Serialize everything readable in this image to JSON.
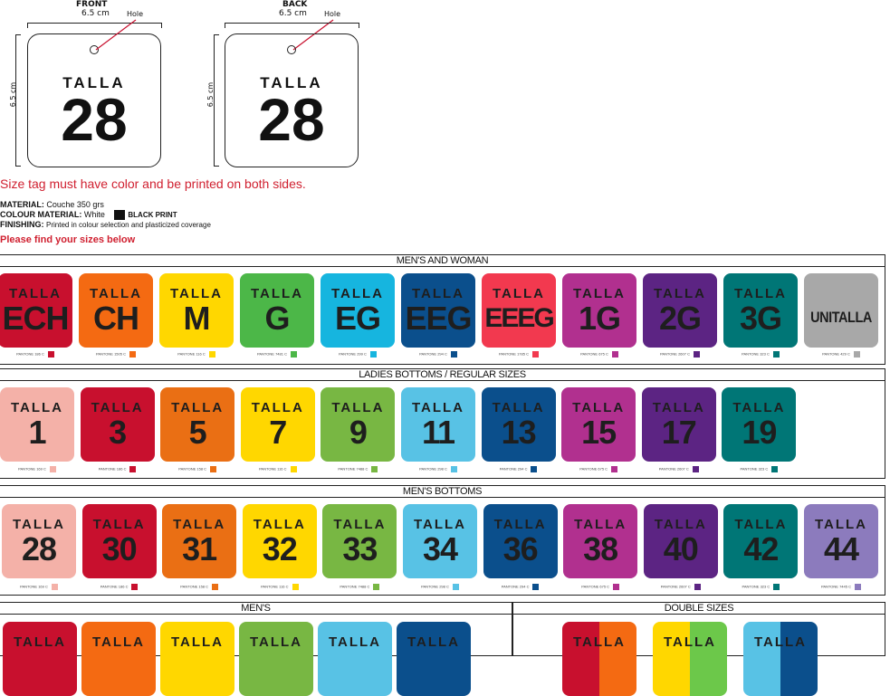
{
  "drawing": {
    "front": {
      "title": "FRONT",
      "width": "6.5 cm",
      "height": "6.5 cm",
      "hole": "Hole",
      "talla": "TALLA",
      "number": "28"
    },
    "back": {
      "title": "BACK",
      "width": "6.5 cm",
      "height": "6.5 cm",
      "hole": "Hole",
      "talla": "TALLA",
      "number": "28"
    },
    "hole_line_color": "#c8102e"
  },
  "notice": "Size tag must have color and be printed on both sides.",
  "specs": {
    "material_label": "MATERIAL:",
    "material": "Couche 350 grs",
    "colour_label": "COLOUR MATERIAL:",
    "colour": "White",
    "print_label": "BLACK PRINT",
    "finishing_label": "FINISHING:",
    "finishing": "Printed in colour selection and plasticized coverage"
  },
  "find_sizes": "Please find your sizes below",
  "talla": "TALLA",
  "sections": [
    {
      "title": "MEN'S AND WOMAN",
      "tags": [
        {
          "size": "ECH",
          "color": "#c8102e",
          "pantone": "PANTONE 186 C"
        },
        {
          "size": "CH",
          "color": "#f46a12",
          "pantone": "PANTONE 1505 C"
        },
        {
          "size": "M",
          "color": "#ffd700",
          "pantone": "PANTONE 116 C"
        },
        {
          "size": "G",
          "color": "#4cb748",
          "pantone": "PANTONE 7481 C"
        },
        {
          "size": "EG",
          "color": "#16b5df",
          "pantone": "PANTONE 299 C"
        },
        {
          "size": "EEG",
          "color": "#0b4f8c",
          "pantone": "PANTONE 294 C"
        },
        {
          "size": "EEEG",
          "color": "#f2394f",
          "pantone": "PANTONE 1785 C"
        },
        {
          "size": "1G",
          "color": "#b1308f",
          "pantone": "PANTONE 675 C"
        },
        {
          "size": "2G",
          "color": "#5c2483",
          "pantone": "PANTONE 2607 C"
        },
        {
          "size": "3G",
          "color": "#007676",
          "pantone": "PANTONE 323 C"
        },
        {
          "size": "UNITALLA",
          "color": "#a8a8a8",
          "pantone": "PANTONE 429 C"
        }
      ]
    },
    {
      "title": "LADIES BOTTOMS / REGULAR SIZES",
      "tags": [
        {
          "size": "1",
          "color": "#f4b1a8",
          "pantone": "PANTONE 169 C"
        },
        {
          "size": "3",
          "color": "#c8102e",
          "pantone": "PANTONE 186 C"
        },
        {
          "size": "5",
          "color": "#ea6f14",
          "pantone": "PANTONE 158 C"
        },
        {
          "size": "7",
          "color": "#ffd700",
          "pantone": "PANTONE 116 C"
        },
        {
          "size": "9",
          "color": "#78b743",
          "pantone": "PANTONE 7488 C"
        },
        {
          "size": "11",
          "color": "#58c2e5",
          "pantone": "PANTONE 298 C"
        },
        {
          "size": "13",
          "color": "#0b4f8c",
          "pantone": "PANTONE 294 C"
        },
        {
          "size": "15",
          "color": "#b1308f",
          "pantone": "PANTONE 675 C"
        },
        {
          "size": "17",
          "color": "#5c2483",
          "pantone": "PANTONE 2607 C"
        },
        {
          "size": "19",
          "color": "#007676",
          "pantone": "PANTONE 323 C"
        }
      ]
    },
    {
      "title": "MEN'S BOTTOMS",
      "tags": [
        {
          "size": "28",
          "color": "#f4b1a8",
          "pantone": "PANTONE 169 C"
        },
        {
          "size": "30",
          "color": "#c8102e",
          "pantone": "PANTONE 186 C"
        },
        {
          "size": "31",
          "color": "#ea6f14",
          "pantone": "PANTONE 158 C"
        },
        {
          "size": "32",
          "color": "#ffd700",
          "pantone": "PANTONE 116 C"
        },
        {
          "size": "33",
          "color": "#78b743",
          "pantone": "PANTONE 7488 C"
        },
        {
          "size": "34",
          "color": "#58c2e5",
          "pantone": "PANTONE 298 C"
        },
        {
          "size": "36",
          "color": "#0b4f8c",
          "pantone": "PANTONE 294 C"
        },
        {
          "size": "38",
          "color": "#b1308f",
          "pantone": "PANTONE 675 C"
        },
        {
          "size": "40",
          "color": "#5c2483",
          "pantone": "PANTONE 2607 C"
        },
        {
          "size": "42",
          "color": "#007676",
          "pantone": "PANTONE 323 C"
        },
        {
          "size": "44",
          "color": "#8c7bbd",
          "pantone": "PANTONE 7445 C"
        }
      ]
    },
    {
      "title": "MEN'S",
      "tags": [
        {
          "color": "#c8102e"
        },
        {
          "color": "#f46a12"
        },
        {
          "color": "#ffd700"
        },
        {
          "color": "#78b743"
        },
        {
          "color": "#58c2e5"
        },
        {
          "color": "#0b4f8c"
        }
      ]
    },
    {
      "title": "DOUBLE SIZES",
      "tags": [
        {
          "color": "#c8102e",
          "color2": "#f46a12"
        },
        {
          "color": "#ffd700",
          "color2": "#6cc84a"
        },
        {
          "color": "#58c2e5",
          "color2": "#0b4f8c"
        }
      ]
    }
  ]
}
